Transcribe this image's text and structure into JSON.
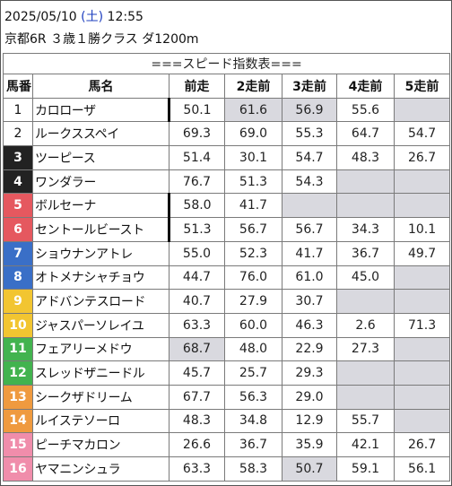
{
  "header": {
    "date": "2025/05/10",
    "dow_open": "(",
    "dow": "土",
    "dow_close": ")",
    "time": "12:55",
    "race": "京都6R ３歳１勝クラス ダ1200m"
  },
  "table": {
    "title": "===スピード指数表===",
    "columns": [
      "馬番",
      "馬名",
      "前走",
      "2走前",
      "3走前",
      "4走前",
      "5走前"
    ],
    "frame_colors": {
      "1": "#ffffff",
      "2": "#ffffff",
      "3": "#222222",
      "4": "#222222",
      "5": "#e5585f",
      "6": "#e5585f",
      "7": "#3a6fc7",
      "8": "#3a6fc7",
      "9": "#f2c531",
      "10": "#f2c531",
      "11": "#42b34f",
      "12": "#42b34f",
      "13": "#ef9a3f",
      "14": "#ef9a3f",
      "15": "#f08dab",
      "16": "#f08dab"
    },
    "rows": [
      {
        "no": "1",
        "name": "カロローザ",
        "vals": [
          "50.1",
          "61.6",
          "56.9",
          "55.6",
          ""
        ]
      },
      {
        "no": "2",
        "name": "ルークススペイ",
        "vals": [
          "69.3",
          "69.0",
          "55.3",
          "64.7",
          "54.7"
        ]
      },
      {
        "no": "3",
        "name": "ツーピース",
        "vals": [
          "51.4",
          "30.1",
          "54.7",
          "48.3",
          "26.7"
        ]
      },
      {
        "no": "4",
        "name": "ワンダラー",
        "vals": [
          "76.7",
          "51.3",
          "54.3",
          "",
          ""
        ]
      },
      {
        "no": "5",
        "name": "ボルセーナ",
        "vals": [
          "58.0",
          "41.7",
          "",
          "",
          ""
        ]
      },
      {
        "no": "6",
        "name": "セントールビースト",
        "vals": [
          "51.3",
          "56.7",
          "56.7",
          "34.3",
          "10.1"
        ]
      },
      {
        "no": "7",
        "name": "ショウナンアトレ",
        "vals": [
          "55.0",
          "52.3",
          "41.7",
          "36.7",
          "49.7"
        ]
      },
      {
        "no": "8",
        "name": "オトメナシャチョウ",
        "vals": [
          "44.7",
          "76.0",
          "61.0",
          "45.0",
          ""
        ]
      },
      {
        "no": "9",
        "name": "アドバンテスロード",
        "vals": [
          "40.7",
          "27.9",
          "30.7",
          "",
          ""
        ]
      },
      {
        "no": "10",
        "name": "ジャスパーソレイユ",
        "vals": [
          "63.3",
          "60.0",
          "46.3",
          "2.6",
          "71.3"
        ]
      },
      {
        "no": "11",
        "name": "フェアリーメドウ",
        "vals": [
          "68.7",
          "48.0",
          "22.9",
          "27.3",
          ""
        ]
      },
      {
        "no": "12",
        "name": "スレッドザニードル",
        "vals": [
          "45.7",
          "25.7",
          "29.3",
          "",
          ""
        ]
      },
      {
        "no": "13",
        "name": "シークザドリーム",
        "vals": [
          "67.7",
          "56.3",
          "29.0",
          "",
          ""
        ]
      },
      {
        "no": "14",
        "name": "ルイステソーロ",
        "vals": [
          "48.3",
          "34.8",
          "12.9",
          "55.7",
          ""
        ]
      },
      {
        "no": "15",
        "name": "ピーチマカロン",
        "vals": [
          "26.6",
          "36.7",
          "35.9",
          "42.1",
          "26.7"
        ]
      },
      {
        "no": "16",
        "name": "ヤマニンシュラ",
        "vals": [
          "63.3",
          "58.3",
          "50.7",
          "59.1",
          "56.1"
        ]
      }
    ]
  }
}
